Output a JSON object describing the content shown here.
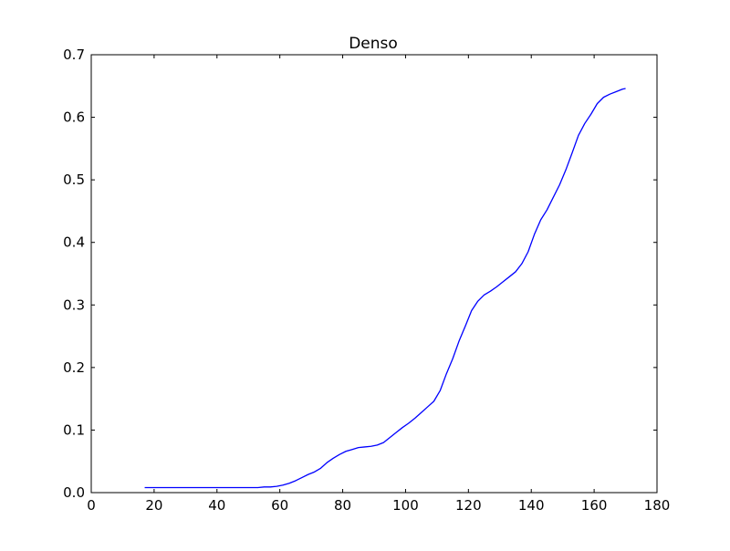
{
  "chart_data": {
    "type": "line",
    "title": "Denso",
    "xlabel": "",
    "ylabel": "",
    "xlim": [
      0,
      180
    ],
    "ylim": [
      0,
      0.7
    ],
    "xticks": [
      0,
      20,
      40,
      60,
      80,
      100,
      120,
      140,
      160,
      180
    ],
    "yticks": [
      0.0,
      0.1,
      0.2,
      0.3,
      0.4,
      0.5,
      0.6,
      0.7
    ],
    "xtick_labels": [
      "0",
      "20",
      "40",
      "60",
      "80",
      "100",
      "120",
      "140",
      "160",
      "180"
    ],
    "ytick_labels": [
      "0.0",
      "0.1",
      "0.2",
      "0.3",
      "0.4",
      "0.5",
      "0.6",
      "0.7"
    ],
    "grid": false,
    "series": [
      {
        "color": "#0000ff",
        "x": [
          17,
          20,
          25,
          30,
          35,
          40,
          45,
          50,
          53,
          55,
          57,
          59,
          61,
          63,
          65,
          67,
          69,
          71,
          73,
          75,
          77,
          79,
          81,
          83,
          85,
          87,
          89,
          91,
          93,
          95,
          97,
          99,
          101,
          103,
          105,
          107,
          109,
          111,
          113,
          115,
          117,
          119,
          121,
          123,
          125,
          127,
          129,
          131,
          133,
          135,
          137,
          139,
          141,
          143,
          145,
          147,
          149,
          151,
          153,
          155,
          157,
          159,
          161,
          163,
          165,
          167,
          169,
          170
        ],
        "y": [
          0.008,
          0.008,
          0.008,
          0.008,
          0.008,
          0.008,
          0.008,
          0.008,
          0.008,
          0.009,
          0.009,
          0.01,
          0.012,
          0.015,
          0.019,
          0.024,
          0.029,
          0.033,
          0.039,
          0.048,
          0.055,
          0.061,
          0.066,
          0.069,
          0.072,
          0.073,
          0.074,
          0.076,
          0.08,
          0.088,
          0.096,
          0.104,
          0.111,
          0.119,
          0.128,
          0.137,
          0.146,
          0.163,
          0.19,
          0.214,
          0.242,
          0.266,
          0.291,
          0.306,
          0.316,
          0.322,
          0.329,
          0.337,
          0.345,
          0.353,
          0.366,
          0.385,
          0.413,
          0.436,
          0.452,
          0.472,
          0.492,
          0.516,
          0.543,
          0.571,
          0.59,
          0.605,
          0.622,
          0.632,
          0.637,
          0.641,
          0.645,
          0.646
        ]
      }
    ]
  }
}
